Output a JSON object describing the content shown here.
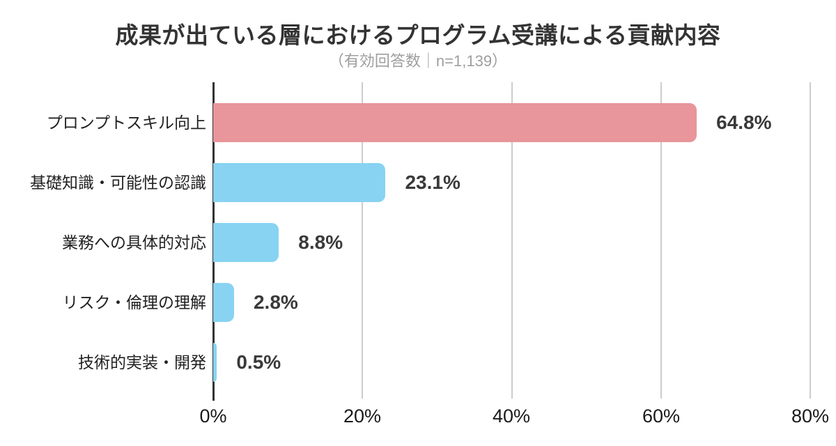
{
  "title": "成果が出ている層におけるプログラム受講による貢献内容",
  "subtitle": "（有効回答数｜n=1,139）",
  "chart_data": {
    "type": "bar",
    "orientation": "horizontal",
    "title": "成果が出ている層におけるプログラム受講による貢献内容",
    "subtitle": "（有効回答数｜n=1,139）",
    "sample_size": "n=1,139",
    "categories": [
      "プロンプトスキル向上",
      "基礎知識・可能性の認識",
      "業務への具体的対応",
      "リスク・倫理の理解",
      "技術的実装・開発"
    ],
    "values": [
      64.8,
      23.1,
      8.8,
      2.8,
      0.5
    ],
    "value_labels": [
      "64.8%",
      "23.1%",
      "8.8%",
      "2.8%",
      "0.5%"
    ],
    "bar_colors": [
      "#E8959B",
      "#87D3F1",
      "#87D3F1",
      "#87D3F1",
      "#87D3F1"
    ],
    "xlim": [
      0,
      80
    ],
    "x_ticks": [
      "0%",
      "20%",
      "40%",
      "60%",
      "80%"
    ],
    "grid": true,
    "gridline_color": "#CCCCCC",
    "axis_color": "#333333",
    "legend": "none"
  }
}
